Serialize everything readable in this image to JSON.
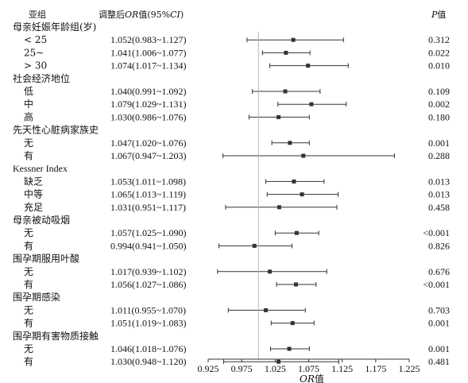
{
  "chart_data": {
    "type": "forest",
    "headers": {
      "subgroup": "亚组",
      "estimate": "调整后OR值(95%CI)",
      "p": "P值"
    },
    "xlabel": "OR值",
    "xlim": [
      0.925,
      1.225
    ],
    "xticks": [
      "0.925",
      "0.975",
      "1.025",
      "1.075",
      "1.125",
      "1.175",
      "1.225"
    ],
    "reference_line": 1.0,
    "groups": [
      {
        "name": "母亲妊娠年龄组(岁)",
        "rows": [
          {
            "label": "< 25",
            "text": "1.052(0.983~1.127)",
            "or": 1.052,
            "lo": 0.983,
            "hi": 1.127,
            "p": "0.312"
          },
          {
            "label": "25~",
            "text": "1.041(1.006~1.077)",
            "or": 1.041,
            "lo": 1.006,
            "hi": 1.077,
            "p": "0.022"
          },
          {
            "label": "> 30",
            "text": "1.074(1.017~1.134)",
            "or": 1.074,
            "lo": 1.017,
            "hi": 1.134,
            "p": "0.010"
          }
        ]
      },
      {
        "name": "社会经济地位",
        "rows": [
          {
            "label": "低",
            "text": "1.040(0.991~1.092)",
            "or": 1.04,
            "lo": 0.991,
            "hi": 1.092,
            "p": "0.109"
          },
          {
            "label": "中",
            "text": "1.079(1.029~1.131)",
            "or": 1.079,
            "lo": 1.029,
            "hi": 1.131,
            "p": "0.002"
          },
          {
            "label": "高",
            "text": "1.030(0.986~1.076)",
            "or": 1.03,
            "lo": 0.986,
            "hi": 1.076,
            "p": "0.180"
          }
        ]
      },
      {
        "name": "先天性心脏病家族史",
        "rows": [
          {
            "label": "无",
            "text": "1.047(1.020~1.076)",
            "or": 1.047,
            "lo": 1.02,
            "hi": 1.076,
            "p": "0.001"
          },
          {
            "label": "有",
            "text": "1.067(0.947~1.203)",
            "or": 1.067,
            "lo": 0.947,
            "hi": 1.203,
            "p": "0.288"
          }
        ]
      },
      {
        "name": "Kessner Index",
        "rows": [
          {
            "label": "缺乏",
            "text": "1.053(1.011~1.098)",
            "or": 1.053,
            "lo": 1.011,
            "hi": 1.098,
            "p": "0.013"
          },
          {
            "label": "中等",
            "text": "1.065(1.013~1.119)",
            "or": 1.065,
            "lo": 1.013,
            "hi": 1.119,
            "p": "0.013"
          },
          {
            "label": "充足",
            "text": "1.031(0.951~1.117)",
            "or": 1.031,
            "lo": 0.951,
            "hi": 1.117,
            "p": "0.458"
          }
        ]
      },
      {
        "name": "母亲被动吸烟",
        "rows": [
          {
            "label": "无",
            "text": "1.057(1.025~1.090)",
            "or": 1.057,
            "lo": 1.025,
            "hi": 1.09,
            "p": "<0.001"
          },
          {
            "label": "有",
            "text": "0.994(0.941~1.050)",
            "or": 0.994,
            "lo": 0.941,
            "hi": 1.05,
            "p": "0.826"
          }
        ]
      },
      {
        "name": "围孕期服用叶酸",
        "rows": [
          {
            "label": "无",
            "text": "1.017(0.939~1.102)",
            "or": 1.017,
            "lo": 0.939,
            "hi": 1.102,
            "p": "0.676"
          },
          {
            "label": "有",
            "text": "1.056(1.027~1.086)",
            "or": 1.056,
            "lo": 1.027,
            "hi": 1.086,
            "p": "<0.001"
          }
        ]
      },
      {
        "name": "围孕期感染",
        "rows": [
          {
            "label": "无",
            "text": "1.011(0.955~1.070)",
            "or": 1.011,
            "lo": 0.955,
            "hi": 1.07,
            "p": "0.703"
          },
          {
            "label": "有",
            "text": "1.051(1.019~1.083)",
            "or": 1.051,
            "lo": 1.019,
            "hi": 1.083,
            "p": "0.001"
          }
        ]
      },
      {
        "name": "围孕期有害物质接触",
        "rows": [
          {
            "label": "无",
            "text": "1.046(1.018~1.076)",
            "or": 1.046,
            "lo": 1.018,
            "hi": 1.076,
            "p": "0.001"
          },
          {
            "label": "有",
            "text": "1.030(0.948~1.120)",
            "or": 1.03,
            "lo": 0.948,
            "hi": 1.12,
            "p": "0.481"
          }
        ]
      }
    ]
  }
}
